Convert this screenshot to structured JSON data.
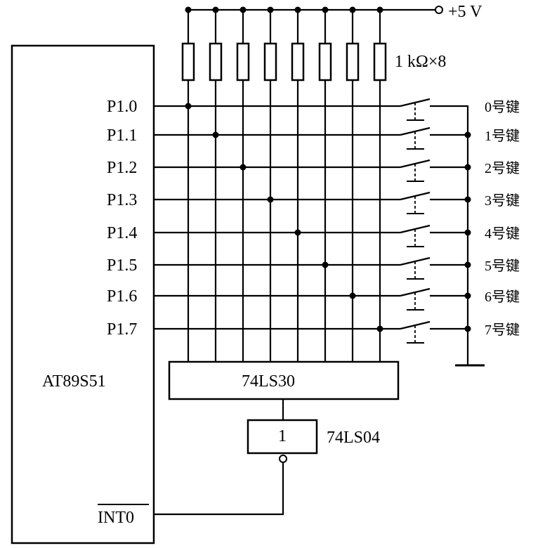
{
  "supply": {
    "label": "+5 V"
  },
  "resistors": {
    "label": "1 kΩ×8",
    "count": 8
  },
  "mcu": {
    "name": "AT89S51",
    "int_pin": "INT0"
  },
  "port_pins": [
    "P1.0",
    "P1.1",
    "P1.2",
    "P1.3",
    "P1.4",
    "P1.5",
    "P1.6",
    "P1.7"
  ],
  "keys": [
    "0号键",
    "1号键",
    "2号键",
    "3号键",
    "4号键",
    "5号键",
    "6号键",
    "7号键"
  ],
  "nand_gate": {
    "name": "74LS30"
  },
  "inverter": {
    "name": "74LS04",
    "symbol": "1"
  }
}
